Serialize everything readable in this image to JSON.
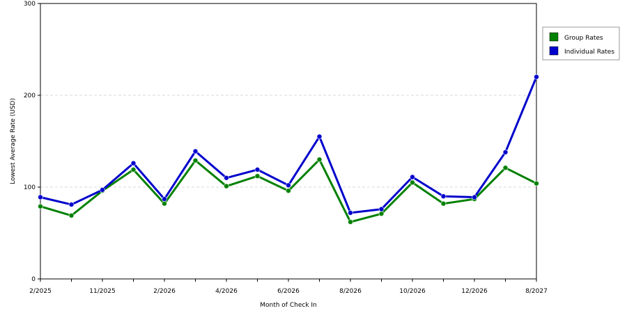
{
  "chart_data": {
    "type": "line",
    "title": "",
    "xlabel": "Month of Check In",
    "ylabel": "Lowest Average Rate (USD)",
    "ylim": [
      0,
      300
    ],
    "yticks": [
      0,
      100,
      200,
      300
    ],
    "grid": true,
    "legend_position": "top-right",
    "x_tick_labels": [
      "2/2025",
      "11/2025",
      "2/2026",
      "4/2026",
      "6/2026",
      "8/2026",
      "10/2026",
      "12/2026",
      "8/2027"
    ],
    "series": [
      {
        "name": "Group Rates",
        "color": "#008000",
        "values": [
          79,
          69,
          96,
          119,
          82,
          129,
          101,
          112,
          96,
          130,
          62,
          71,
          105,
          82,
          87,
          121,
          104
        ]
      },
      {
        "name": "Individual Rates",
        "color": "#0000cc",
        "values": [
          89,
          81,
          97,
          126,
          87,
          139,
          110,
          119,
          102,
          155,
          72,
          76,
          111,
          90,
          89,
          138,
          220
        ]
      }
    ]
  }
}
